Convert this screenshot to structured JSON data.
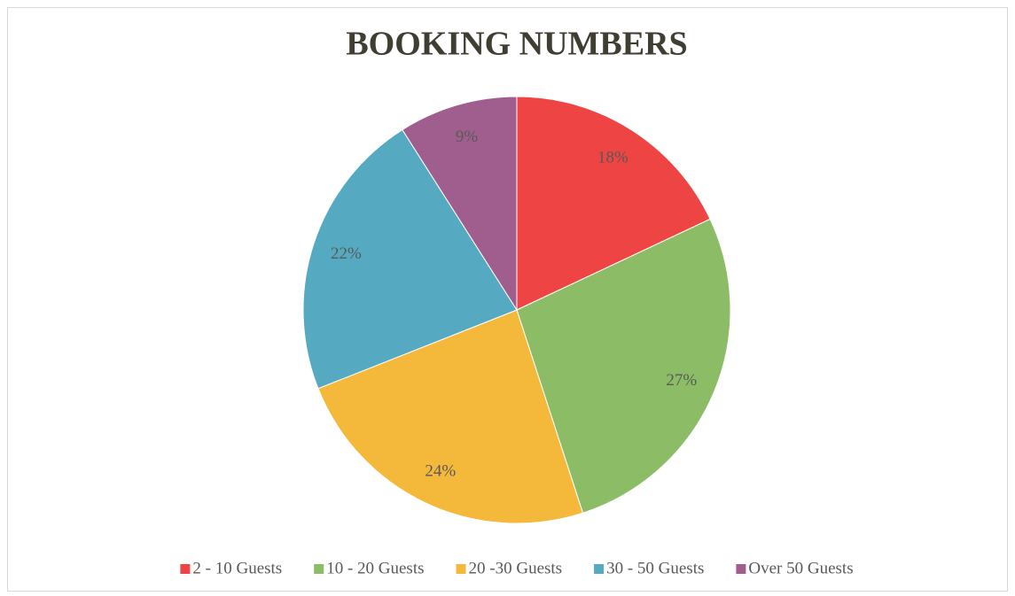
{
  "chart_data": {
    "type": "pie",
    "title": "BOOKING NUMBERS",
    "categories": [
      "2 - 10 Guests",
      "10 - 20 Guests",
      "20 -30 Guests",
      "30 - 50 Guests",
      "Over 50 Guests"
    ],
    "values": [
      18,
      27,
      24,
      22,
      9
    ],
    "value_labels": [
      "18%",
      "27%",
      "24%",
      "22%",
      "9%"
    ],
    "colors": [
      "#ee4444",
      "#8cbd66",
      "#f4b83a",
      "#55aac2",
      "#a05e8e"
    ],
    "legend": "bottom"
  }
}
